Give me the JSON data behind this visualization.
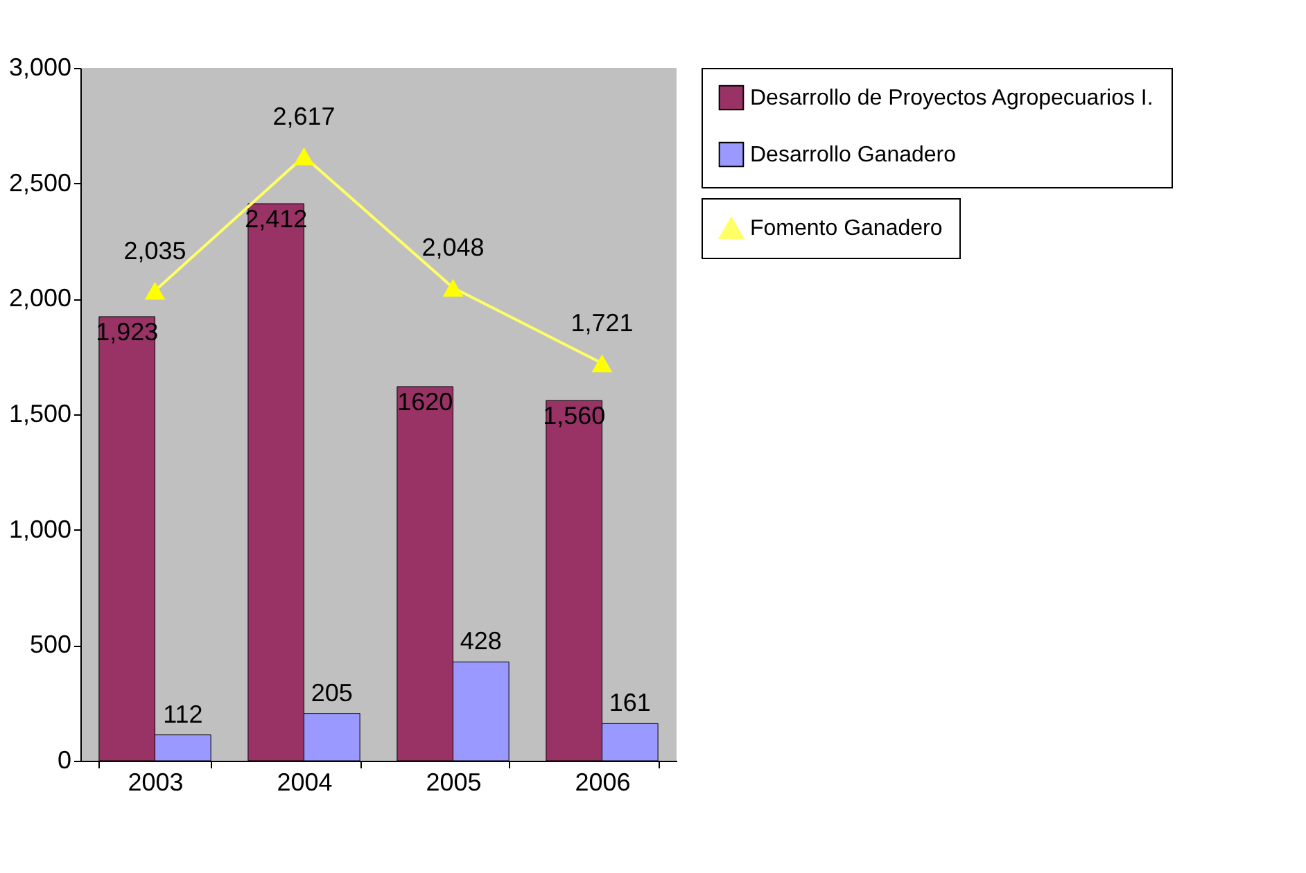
{
  "chart_data": {
    "type": "bar",
    "categories": [
      "2003",
      "2004",
      "2005",
      "2006"
    ],
    "series": [
      {
        "name": "Desarrollo de Proyectos Agropecuarios I.",
        "color": "#993366",
        "values": [
          1923,
          2412,
          1620,
          1560
        ],
        "value_labels": [
          "1,923",
          "2,412",
          "1620",
          "1,560"
        ]
      },
      {
        "name": "Desarrollo Ganadero",
        "color": "#9999ff",
        "values": [
          112,
          205,
          428,
          161
        ],
        "value_labels": [
          "112",
          "205",
          "428",
          "161"
        ]
      },
      {
        "name": "Fomento Ganadero",
        "type": "line",
        "color": "#ffff66",
        "marker": "triangle",
        "values": [
          2035,
          2617,
          2048,
          1721
        ],
        "value_labels": [
          "2,035",
          "2,617",
          "2,048",
          "1,721"
        ]
      }
    ],
    "ylim": [
      0,
      3000
    ],
    "yticks": [
      0,
      500,
      {
        "value": 1000,
        "label": "1,000"
      },
      {
        "value": 1500,
        "label": "1,500"
      },
      {
        "value": 2000,
        "label": "2,000"
      },
      {
        "value": 2500,
        "label": "2,500"
      },
      {
        "value": 3000,
        "label": "3,000"
      }
    ],
    "grid": false,
    "legend": "right"
  }
}
